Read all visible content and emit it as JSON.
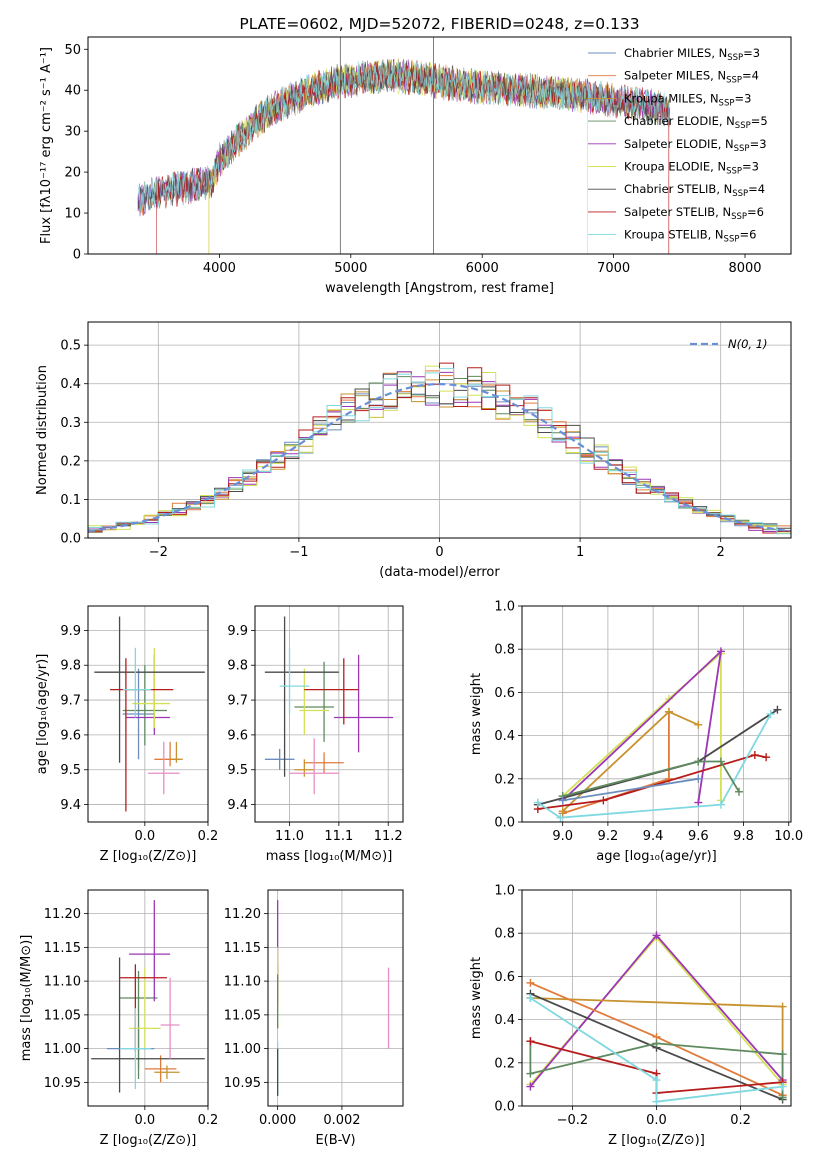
{
  "colors": {
    "Chabrier MILES": "#6c8ebf",
    "Salpeter MILES": "#e07b3a",
    "Kroupa MILES": "#c8922e",
    "Chabrier ELODIE": "#5f8a5f",
    "Salpeter ELODIE": "#9c36b5",
    "Kroupa ELODIE": "#d4e157",
    "Chabrier STELIB": "#4a4a4a",
    "Salpeter STELIB": "#b71c1c",
    "Kroupa STELIB": "#80d8e0",
    "normal": "#6a8fd8"
  },
  "chart_data": [
    {
      "id": "spectrum",
      "type": "line",
      "title": "PLATE=0602, MJD=52072, FIBERID=0248, z=0.133",
      "xlabel": "wavelength [Angstrom, rest frame]",
      "ylabel": "Flux [fλ10⁻¹⁷ erg cm⁻² s⁻¹ A⁻¹]",
      "xlim": [
        3000,
        8350
      ],
      "ylim": [
        0,
        53
      ],
      "xticks": [
        4000,
        5000,
        6000,
        7000,
        8000
      ],
      "yticks": [
        0,
        10,
        20,
        30,
        40,
        50
      ],
      "grid": false,
      "legend_position": "top-right",
      "legend": [
        {
          "model": "Chabrier MILES",
          "label": "Chabrier MILES, N",
          "sub": "SSP",
          "suffix": "=3"
        },
        {
          "model": "Salpeter MILES",
          "label": "Salpeter MILES, N",
          "sub": "SSP",
          "suffix": "=4"
        },
        {
          "model": "Kroupa MILES",
          "label": "Kroupa MILES, N",
          "sub": "SSP",
          "suffix": "=3"
        },
        {
          "model": "Chabrier ELODIE",
          "label": "Chabrier ELODIE, N",
          "sub": "SSP",
          "suffix": "=5"
        },
        {
          "model": "Salpeter ELODIE",
          "label": "Salpeter ELODIE, N",
          "sub": "SSP",
          "suffix": "=3"
        },
        {
          "model": "Kroupa ELODIE",
          "label": "Kroupa ELODIE, N",
          "sub": "SSP",
          "suffix": "=3"
        },
        {
          "model": "Chabrier STELIB",
          "label": "Chabrier STELIB, N",
          "sub": "SSP",
          "suffix": "=4"
        },
        {
          "model": "Salpeter STELIB",
          "label": "Salpeter STELIB, N",
          "sub": "SSP",
          "suffix": "=6"
        },
        {
          "model": "Kroupa STELIB",
          "label": "Kroupa STELIB, N",
          "sub": "SSP",
          "suffix": "=6"
        }
      ],
      "continuum": [
        [
          3380,
          13
        ],
        [
          3500,
          15
        ],
        [
          3700,
          16
        ],
        [
          3850,
          17
        ],
        [
          3950,
          18
        ],
        [
          4000,
          23
        ],
        [
          4150,
          28
        ],
        [
          4300,
          33
        ],
        [
          4500,
          37
        ],
        [
          4700,
          40
        ],
        [
          4900,
          42
        ],
        [
          5100,
          43
        ],
        [
          5300,
          43.5
        ],
        [
          5500,
          43
        ],
        [
          5700,
          42
        ],
        [
          5900,
          41
        ],
        [
          6100,
          40.5
        ],
        [
          6300,
          40
        ],
        [
          6500,
          39.5
        ],
        [
          6700,
          39
        ],
        [
          6900,
          38
        ],
        [
          7100,
          37
        ],
        [
          7300,
          36
        ],
        [
          7430,
          35
        ]
      ]
    },
    {
      "id": "residuals",
      "type": "histogram",
      "xlabel": "(data-model)/error",
      "ylabel": "Normed distribution",
      "xlim": [
        -2.5,
        2.5
      ],
      "ylim": [
        0,
        0.56
      ],
      "xticks": [
        -2,
        -1,
        0,
        1,
        2
      ],
      "yticks": [
        0.0,
        0.1,
        0.2,
        0.3,
        0.4,
        0.5
      ],
      "grid": true,
      "legend_position": "top-right",
      "legend_label": "N(0, 1)",
      "bin_width": 0.1
    },
    {
      "id": "age_vs_Z",
      "type": "errorbar",
      "xlabel": "Z [log₁₀(Z/Z⊙)]",
      "ylabel": "age  [log₁₀(age/yr)]",
      "xlim": [
        -0.18,
        0.2
      ],
      "ylim": [
        9.35,
        9.97
      ],
      "xticks": [
        0.0,
        0.2
      ],
      "yticks": [
        9.4,
        9.5,
        9.6,
        9.7,
        9.8,
        9.9
      ],
      "grid": true,
      "points": [
        {
          "model": "Chabrier MILES",
          "x": -0.02,
          "y": 9.66,
          "xerr": [
            0.05,
            0.05
          ],
          "yerr": [
            0.13,
            0.13
          ]
        },
        {
          "model": "Salpeter MILES",
          "x": 0.08,
          "y": 9.53,
          "xerr": [
            0.05,
            0.03
          ],
          "yerr": [
            0.02,
            0.05
          ]
        },
        {
          "model": "Kroupa MILES",
          "x": 0.1,
          "y": 9.53,
          "xerr": [
            0.02,
            0.02
          ],
          "yerr": [
            0.01,
            0.05
          ]
        },
        {
          "model": "Chabrier ELODIE",
          "x": 0.0,
          "y": 9.67,
          "xerr": [
            0.07,
            0.07
          ],
          "yerr": [
            0.1,
            0.13
          ]
        },
        {
          "model": "Salpeter ELODIE",
          "x": 0.03,
          "y": 9.65,
          "xerr": [
            0.09,
            0.05
          ],
          "yerr": [
            0.05,
            0.18
          ]
        },
        {
          "model": "Kroupa ELODIE",
          "x": 0.03,
          "y": 9.69,
          "xerr": [
            0.07,
            0.05
          ],
          "yerr": [
            0.07,
            0.16
          ]
        },
        {
          "model": "Chabrier STELIB",
          "x": -0.08,
          "y": 9.78,
          "xerr": [
            0.08,
            0.27
          ],
          "yerr": [
            0.26,
            0.16
          ]
        },
        {
          "model": "Salpeter STELIB",
          "x": -0.06,
          "y": 9.73,
          "xerr": [
            0.05,
            0.15
          ],
          "yerr": [
            0.35,
            0.09
          ]
        },
        {
          "model": "Kroupa STELIB",
          "x": -0.03,
          "y": 9.73,
          "xerr": [
            0.04,
            0.05
          ],
          "yerr": [
            0.08,
            0.12
          ]
        },
        {
          "model": "Salpeter MILES",
          "x": 0.06,
          "y": 9.49,
          "xerr": [
            0.05,
            0.05
          ],
          "yerr": [
            0.06,
            0.09
          ],
          "tint": "#e88ec2"
        }
      ]
    },
    {
      "id": "age_vs_mass",
      "type": "errorbar",
      "xlabel": "mass [log₁₀(M/M⊙)]",
      "ylabel": "",
      "xlim": [
        10.93,
        11.23
      ],
      "ylim": [
        9.35,
        9.97
      ],
      "xticks": [
        11.0,
        11.1,
        11.2
      ],
      "yticks": [
        9.4,
        9.5,
        9.6,
        9.7,
        9.8,
        9.9
      ],
      "grid": true,
      "points": [
        {
          "model": "Chabrier MILES",
          "x": 10.98,
          "y": 9.53,
          "xerr": [
            0.03,
            0.03
          ],
          "yerr": [
            0.03,
            0.03
          ]
        },
        {
          "model": "Salpeter MILES",
          "x": 11.07,
          "y": 9.52,
          "xerr": [
            0.04,
            0.04
          ],
          "yerr": [
            0.03,
            0.03
          ]
        },
        {
          "model": "Kroupa MILES",
          "x": 11.03,
          "y": 9.5,
          "xerr": [
            0.02,
            0.02
          ],
          "yerr": [
            0.02,
            0.03
          ]
        },
        {
          "model": "Chabrier ELODIE",
          "x": 11.07,
          "y": 9.68,
          "xerr": [
            0.06,
            0.02
          ],
          "yerr": [
            0.1,
            0.13
          ]
        },
        {
          "model": "Salpeter ELODIE",
          "x": 11.14,
          "y": 9.65,
          "xerr": [
            0.05,
            0.07
          ],
          "yerr": [
            0.1,
            0.18
          ]
        },
        {
          "model": "Kroupa ELODIE",
          "x": 11.03,
          "y": 9.67,
          "xerr": [
            0.01,
            0.05
          ],
          "yerr": [
            0.07,
            0.12
          ]
        },
        {
          "model": "Chabrier STELIB",
          "x": 10.99,
          "y": 9.78,
          "xerr": [
            0.04,
            0.11
          ],
          "yerr": [
            0.3,
            0.16
          ]
        },
        {
          "model": "Salpeter STELIB",
          "x": 11.11,
          "y": 9.73,
          "xerr": [
            0.08,
            0.03
          ],
          "yerr": [
            0.1,
            0.09
          ]
        },
        {
          "model": "Kroupa STELIB",
          "x": 11.0,
          "y": 9.74,
          "xerr": [
            0.02,
            0.04
          ],
          "yerr": [
            0.08,
            0.11
          ]
        },
        {
          "model": "Salpeter MILES",
          "x": 11.05,
          "y": 9.49,
          "xerr": [
            0.05,
            0.05
          ],
          "yerr": [
            0.06,
            0.1
          ],
          "tint": "#e88ec2"
        }
      ]
    },
    {
      "id": "massweight_vs_age",
      "type": "line",
      "xlabel": "age  [log₁₀(age/yr)]",
      "ylabel": "mass weight",
      "xlim": [
        8.82,
        10.01
      ],
      "ylim": [
        0,
        1
      ],
      "xticks": [
        9.0,
        9.2,
        9.4,
        9.6,
        9.8,
        10.0
      ],
      "yticks": [
        0.0,
        0.2,
        0.4,
        0.6,
        0.8,
        1.0
      ],
      "grid": true,
      "series": [
        {
          "model": "Kroupa ELODIE",
          "x": [
            9.0,
            9.47,
            9.7,
            9.7
          ],
          "y": [
            0.12,
            0.57,
            0.78,
            0.1
          ]
        },
        {
          "model": "Salpeter ELODIE",
          "x": [
            9.6,
            9.7,
            9.0
          ],
          "y": [
            0.09,
            0.79,
            0.1
          ]
        },
        {
          "model": "Salpeter MILES",
          "x": [
            9.47,
            9.47,
            9.0
          ],
          "y": [
            0.51,
            0.2,
            0.04
          ]
        },
        {
          "model": "Kroupa MILES",
          "x": [
            9.0,
            9.47,
            9.6
          ],
          "y": [
            0.05,
            0.51,
            0.45
          ]
        },
        {
          "model": "Chabrier STELIB",
          "x": [
            8.89,
            9.6,
            9.95
          ],
          "y": [
            0.08,
            0.28,
            0.52
          ]
        },
        {
          "model": "Salpeter STELIB",
          "x": [
            8.89,
            9.18,
            9.85,
            9.9
          ],
          "y": [
            0.06,
            0.1,
            0.31,
            0.3
          ]
        },
        {
          "model": "Kroupa STELIB",
          "x": [
            8.89,
            8.99,
            9.7,
            9.92
          ],
          "y": [
            0.09,
            0.02,
            0.08,
            0.5
          ]
        },
        {
          "model": "Chabrier ELODIE",
          "x": [
            9.0,
            9.6,
            9.7,
            9.78
          ],
          "y": [
            0.12,
            0.28,
            0.28,
            0.14
          ]
        },
        {
          "model": "Chabrier MILES",
          "x": [
            9.0,
            9.6
          ],
          "y": [
            0.1,
            0.2
          ]
        }
      ]
    },
    {
      "id": "mass_vs_Z",
      "type": "errorbar",
      "xlabel": "Z [log₁₀(Z/Z⊙)]",
      "ylabel": "mass [log₁₀(M/M⊙)]",
      "xlim": [
        -0.18,
        0.2
      ],
      "ylim": [
        10.915,
        11.235
      ],
      "xticks": [
        0.0,
        0.2
      ],
      "yticks": [
        10.95,
        11.0,
        11.05,
        11.1,
        11.15,
        11.2
      ],
      "grid": true,
      "points": [
        {
          "model": "Chabrier MILES",
          "x": -0.02,
          "y": 11.0,
          "xerr": [
            0.1,
            0.05
          ],
          "yerr": [
            0.03,
            0.03
          ]
        },
        {
          "model": "Salpeter MILES",
          "x": 0.05,
          "y": 10.97,
          "xerr": [
            0.05,
            0.05
          ],
          "yerr": [
            0.02,
            0.02
          ]
        },
        {
          "model": "Kroupa MILES",
          "x": 0.07,
          "y": 10.965,
          "xerr": [
            0.04,
            0.04
          ],
          "yerr": [
            0.01,
            0.01
          ]
        },
        {
          "model": "Chabrier ELODIE",
          "x": -0.02,
          "y": 11.075,
          "xerr": [
            0.06,
            0.06
          ],
          "yerr": [
            0.12,
            0.04
          ]
        },
        {
          "model": "Salpeter ELODIE",
          "x": 0.03,
          "y": 11.14,
          "xerr": [
            0.08,
            0.05
          ],
          "yerr": [
            0.07,
            0.08
          ]
        },
        {
          "model": "Kroupa ELODIE",
          "x": 0.0,
          "y": 11.03,
          "xerr": [
            0.05,
            0.05
          ],
          "yerr": [
            0.03,
            0.09
          ]
        },
        {
          "model": "Chabrier STELIB",
          "x": -0.08,
          "y": 10.985,
          "xerr": [
            0.09,
            0.27
          ],
          "yerr": [
            0.05,
            0.15
          ]
        },
        {
          "model": "Salpeter STELIB",
          "x": -0.03,
          "y": 11.105,
          "xerr": [
            0.05,
            0.1
          ],
          "yerr": [
            0.11,
            0.02
          ]
        },
        {
          "model": "Kroupa STELIB",
          "x": -0.03,
          "y": 11.0,
          "xerr": [
            0.05,
            0.05
          ],
          "yerr": [
            0.06,
            0.06
          ]
        },
        {
          "model": "Salpeter MILES",
          "x": 0.08,
          "y": 11.035,
          "xerr": [
            0.03,
            0.03
          ],
          "yerr": [
            0.05,
            0.07
          ],
          "tint": "#e88ec2"
        }
      ]
    },
    {
      "id": "mass_vs_EBV",
      "type": "errorbar",
      "xlabel": "E(B-V)",
      "ylabel": "",
      "xlim": [
        -0.0003,
        0.0039
      ],
      "ylim": [
        10.915,
        11.235
      ],
      "xticks": [
        0.0,
        0.002
      ],
      "xtick_labels": [
        "0.000",
        "0.002"
      ],
      "yticks": [
        10.95,
        11.0,
        11.05,
        11.1,
        11.15,
        11.2
      ],
      "grid": true,
      "points": [
        {
          "model": "Salpeter ELODIE",
          "x": 0.0,
          "y": 11.14,
          "xerr": [
            0,
            0
          ],
          "yerr": [
            0.07,
            0.08
          ]
        },
        {
          "model": "Salpeter STELIB",
          "x": 0.0,
          "y": 11.105,
          "xerr": [
            0,
            0
          ],
          "yerr": [
            0.04,
            0.02
          ]
        },
        {
          "model": "Kroupa ELODIE",
          "x": 0.0,
          "y": 11.06,
          "xerr": [
            0,
            0
          ],
          "yerr": [
            0.03,
            0.09
          ]
        },
        {
          "model": "Chabrier ELODIE",
          "x": 0.0,
          "y": 11.07,
          "xerr": [
            0,
            0
          ],
          "yerr": [
            0.04,
            0.04
          ]
        },
        {
          "model": "Kroupa STELIB",
          "x": 0.0,
          "y": 10.98,
          "xerr": [
            0,
            0
          ],
          "yerr": [
            0.05,
            0.03
          ]
        },
        {
          "model": "Chabrier STELIB",
          "x": 0.0,
          "y": 10.96,
          "xerr": [
            0,
            0
          ],
          "yerr": [
            0.03,
            0.04
          ]
        },
        {
          "model": "Salpeter MILES",
          "x": 0.00345,
          "y": 11.06,
          "xerr": [
            0,
            0
          ],
          "yerr": [
            0.06,
            0.06
          ],
          "tint": "#e88ec2"
        }
      ]
    },
    {
      "id": "massweight_vs_Z",
      "type": "line",
      "xlabel": "Z [log₁₀(Z/Z⊙)]",
      "ylabel": "mass weight",
      "xlim": [
        -0.32,
        0.32
      ],
      "ylim": [
        0,
        1
      ],
      "xticks": [
        -0.2,
        0.0,
        0.2
      ],
      "yticks": [
        0.0,
        0.2,
        0.4,
        0.6,
        0.8,
        1.0
      ],
      "grid": true,
      "series": [
        {
          "model": "Kroupa ELODIE",
          "x": [
            -0.3,
            0.0,
            0.3
          ],
          "y": [
            0.1,
            0.78,
            0.1
          ]
        },
        {
          "model": "Salpeter ELODIE",
          "x": [
            -0.3,
            0.0,
            0.3
          ],
          "y": [
            0.09,
            0.79,
            0.12
          ]
        },
        {
          "model": "Kroupa MILES",
          "x": [
            -0.3,
            0.3,
            0.3
          ],
          "y": [
            0.5,
            0.46,
            0.05
          ]
        },
        {
          "model": "Salpeter MILES",
          "x": [
            -0.3,
            0.0,
            0.3
          ],
          "y": [
            0.57,
            0.32,
            0.05
          ]
        },
        {
          "model": "Chabrier STELIB",
          "x": [
            -0.3,
            0.0,
            0.3
          ],
          "y": [
            0.52,
            0.27,
            0.03
          ]
        },
        {
          "model": "Chabrier ELODIE",
          "x": [
            -0.3,
            -0.3,
            0.0,
            0.3,
            0.3
          ],
          "y": [
            0.3,
            0.15,
            0.29,
            0.24,
            0.04
          ]
        },
        {
          "model": "Salpeter STELIB",
          "x": [
            -0.3,
            0.0,
            0.0,
            0.3
          ],
          "y": [
            0.3,
            0.15,
            0.06,
            0.11
          ]
        },
        {
          "model": "Kroupa STELIB",
          "x": [
            -0.3,
            0.0,
            0.0,
            0.3
          ],
          "y": [
            0.5,
            0.12,
            0.02,
            0.09
          ]
        }
      ]
    }
  ]
}
